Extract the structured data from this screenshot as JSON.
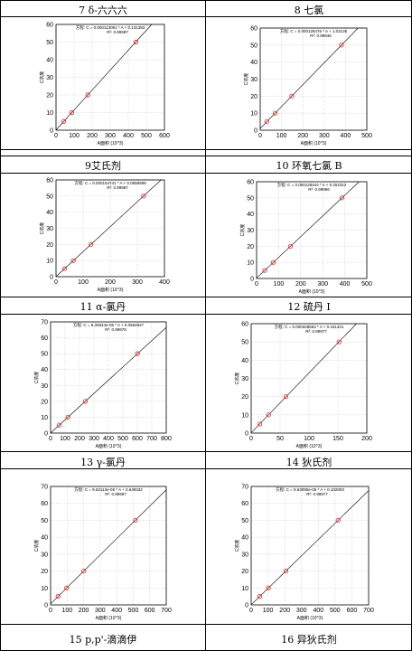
{
  "chart_data": [
    {
      "type": "scatter",
      "title": "7 δ-六六六",
      "equation": "方程: C = 0.000113081 * A + 0.131383",
      "r2": "R²: 0.99987",
      "xlabel": "A面积 (10^3)",
      "ylabel": "C浓度",
      "xlim": [
        0,
        600
      ],
      "ylim": [
        0,
        60
      ],
      "xticks": [
        0,
        100,
        200,
        300,
        400,
        500,
        600
      ],
      "yticks": [
        0,
        10,
        20,
        30,
        40,
        50,
        60
      ],
      "x": [
        43,
        87,
        176,
        442
      ],
      "y": [
        5,
        10,
        20,
        50
      ],
      "fit": {
        "slope": 0.113081,
        "intercept": 0.131383
      }
    },
    {
      "type": "scatter",
      "title": "8 七氯",
      "equation": "方程: C = 0.000128476 * A + 1.03135",
      "r2": "R²: 0.99946",
      "xlabel": "A面积 (10^3)",
      "ylabel": "C浓度",
      "xlim": [
        0,
        500
      ],
      "ylim": [
        0,
        60
      ],
      "xticks": [
        0,
        100,
        200,
        300,
        400,
        500
      ],
      "yticks": [
        0,
        10,
        20,
        30,
        40,
        50,
        60
      ],
      "x": [
        31,
        70,
        148,
        381
      ],
      "y": [
        5,
        10,
        20,
        50
      ],
      "fit": {
        "slope": 0.128476,
        "intercept": 1.03135
      }
    },
    {
      "type": "scatter",
      "title": "9艾氏剂",
      "equation": "方程: C = 0.000154741 * A + 0.0558999",
      "r2": "R²: 0.99987",
      "xlabel": "A面积 (10^3)",
      "ylabel": "C浓度",
      "xlim": [
        0,
        400
      ],
      "ylim": [
        0,
        60
      ],
      "xticks": [
        0,
        100,
        200,
        300,
        400
      ],
      "yticks": [
        0,
        10,
        20,
        30,
        40,
        50,
        60
      ],
      "x": [
        32,
        64,
        129,
        323
      ],
      "y": [
        5,
        10,
        20,
        50
      ],
      "fit": {
        "slope": 0.154741,
        "intercept": 0.0558999
      }
    },
    {
      "type": "scatter",
      "title": "10 环氧七氯 B",
      "equation": "方程: C = 0.000128444 * A + 0.252312",
      "r2": "R²: 0.99986",
      "xlabel": "A面积 (10^3)",
      "ylabel": "C浓度",
      "xlim": [
        0,
        500
      ],
      "ylim": [
        0,
        60
      ],
      "xticks": [
        0,
        100,
        200,
        300,
        400,
        500
      ],
      "yticks": [
        0,
        10,
        20,
        30,
        40,
        50,
        60
      ],
      "x": [
        37,
        76,
        154,
        387
      ],
      "y": [
        5,
        10,
        20,
        50
      ],
      "fit": {
        "slope": 0.128444,
        "intercept": 0.252312
      }
    },
    {
      "type": "scatter",
      "title": "11 α-氯丹",
      "equation": "方程: C = 8.30844e-05 * A + 0.0564927",
      "r2": "R²: 0.99978",
      "xlabel": "A面积 (10^3)",
      "ylabel": "C浓度",
      "xlim": [
        0,
        800
      ],
      "ylim": [
        0,
        70
      ],
      "xticks": [
        0,
        100,
        200,
        300,
        400,
        500,
        600,
        700,
        800
      ],
      "yticks": [
        0,
        10,
        20,
        30,
        40,
        50,
        60,
        70
      ],
      "x": [
        60,
        120,
        240,
        601
      ],
      "y": [
        5,
        10,
        20,
        50
      ],
      "fit": {
        "slope": 0.0830844,
        "intercept": 0.0564927
      }
    },
    {
      "type": "scatter",
      "title": "12 硫丹 I",
      "equation": "方程: C = 0.000328563 * A + 0.161421",
      "r2": "R²: 0.99977",
      "xlabel": "A面积 (10^3)",
      "ylabel": "C浓度",
      "xlim": [
        0,
        200
      ],
      "ylim": [
        0,
        60
      ],
      "xticks": [
        0,
        50,
        100,
        150,
        200
      ],
      "yticks": [
        0,
        10,
        20,
        30,
        40,
        50,
        60
      ],
      "x": [
        15,
        30,
        60,
        152
      ],
      "y": [
        5,
        10,
        20,
        50
      ],
      "fit": {
        "slope": 0.328563,
        "intercept": 0.161421
      }
    },
    {
      "type": "scatter",
      "title": "13 γ-氯丹",
      "equation": "方程: C = 9.62113e-05 * A + 0.649332",
      "r2": "R²: 0.99987",
      "xlabel": "A面积 (10^3)",
      "ylabel": "C浓度",
      "xlim": [
        0,
        700
      ],
      "ylim": [
        0,
        70
      ],
      "xticks": [
        0,
        100,
        200,
        300,
        400,
        500,
        600,
        700
      ],
      "yticks": [
        0,
        10,
        20,
        30,
        40,
        50,
        60,
        70
      ],
      "x": [
        45,
        97,
        201,
        513
      ],
      "y": [
        5,
        10,
        20,
        50
      ],
      "fit": {
        "slope": 0.0962113,
        "intercept": 0.649332
      }
    },
    {
      "type": "scatter",
      "title": "14 狄氏剂",
      "equation": "方程: C = 9.63095e-05 * A + 0.102803",
      "r2": "R²: 0.99977",
      "xlabel": "A面积 (10^3)",
      "ylabel": "C浓度",
      "xlim": [
        0,
        700
      ],
      "ylim": [
        0,
        70
      ],
      "xticks": [
        0,
        100,
        200,
        300,
        400,
        500,
        600,
        700
      ],
      "yticks": [
        0,
        10,
        20,
        30,
        40,
        50,
        60,
        70
      ],
      "x": [
        51,
        103,
        207,
        518
      ],
      "y": [
        5,
        10,
        20,
        50
      ],
      "fit": {
        "slope": 0.0963095,
        "intercept": 0.102803
      }
    }
  ],
  "footer_titles": [
    "15 p,p'-滴滴伊",
    "16 异狄氏剂"
  ]
}
